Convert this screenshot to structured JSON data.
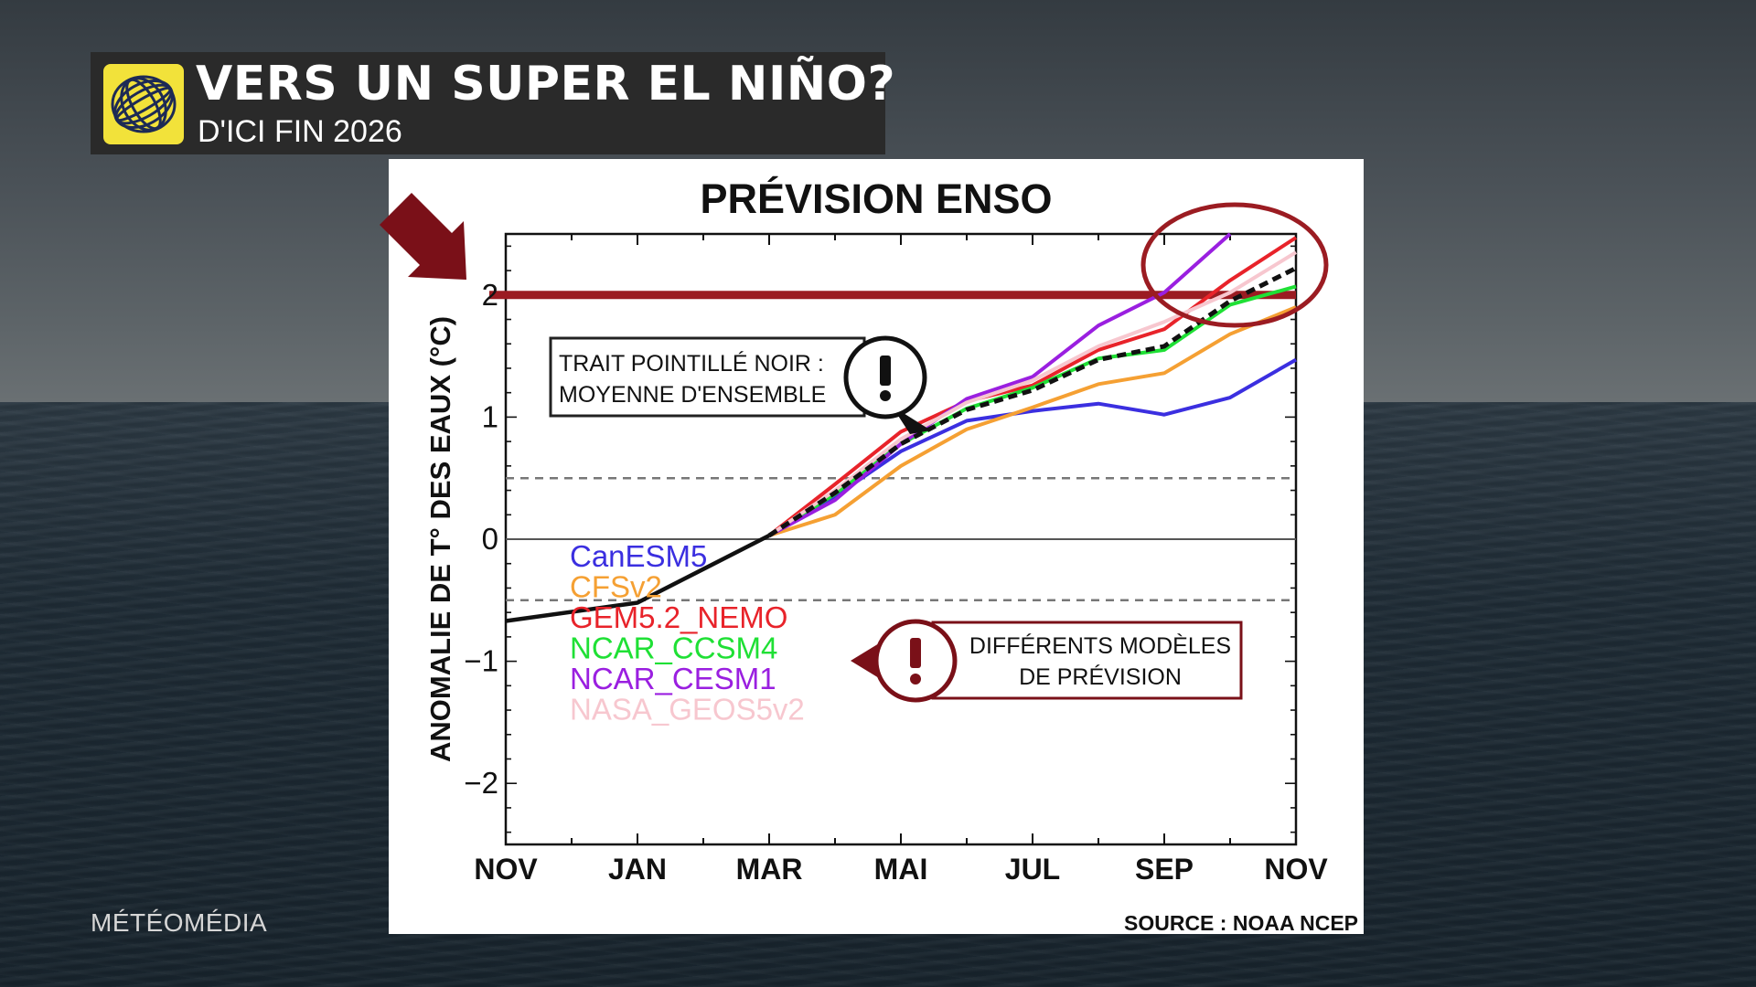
{
  "header": {
    "title": "VERS UN SUPER EL NIÑO?",
    "subtitle": "D'ICI FIN 2026"
  },
  "brand": "MÉTÉOMÉDIA",
  "source": "SOURCE : NOAA NCEP",
  "callouts": {
    "mean_line_line1": "TRAIT POINTILLÉ NOIR :",
    "mean_line_line2": "MOYENNE D'ENSEMBLE",
    "models_line1": "DIFFÉRENTS MODÈLES",
    "models_line2": "DE PRÉVISION"
  },
  "colors": {
    "threshold": "#9b1c22",
    "accent_red": "#7a1018",
    "logo_yellow": "#f2e23a"
  },
  "chart_data": {
    "type": "line",
    "title": "PRÉVISION ENSO",
    "ylabel": "ANOMALIE DE T° DES EAUX (°C)",
    "xlabel": "",
    "ylim": [
      -2.5,
      2.5
    ],
    "x_ticklabels": [
      "NOV",
      "JAN",
      "MAR",
      "MAI",
      "JUL",
      "SEP",
      "NOV"
    ],
    "y_ticks": [
      -2,
      -1,
      0,
      1,
      2
    ],
    "y_ticklabels": [
      "−2",
      "−1",
      "0",
      "1",
      "2"
    ],
    "reference_lines": {
      "threshold": 2.0,
      "dashed": [
        0.5,
        -0.5
      ],
      "solid": 0
    },
    "observed": {
      "months": [
        0,
        2,
        4
      ],
      "values": [
        -0.67,
        -0.52,
        0.03
      ]
    },
    "series": [
      {
        "name": "CanESM5",
        "color": "#3b2fe0",
        "months": [
          4,
          5,
          6,
          7,
          8,
          9,
          10,
          11,
          12
        ],
        "values": [
          0.03,
          0.35,
          0.72,
          0.97,
          1.05,
          1.11,
          1.02,
          1.16,
          1.47
        ]
      },
      {
        "name": "CFSv2",
        "color": "#f5a033",
        "months": [
          4,
          5,
          6,
          7,
          8,
          9,
          10,
          11,
          12
        ],
        "values": [
          0.03,
          0.2,
          0.6,
          0.9,
          1.08,
          1.27,
          1.36,
          1.68,
          1.9
        ]
      },
      {
        "name": "GEM5.2_NEMO",
        "color": "#e8232a",
        "months": [
          4,
          5,
          6,
          7,
          8,
          9,
          10,
          11,
          12
        ],
        "values": [
          0.03,
          0.45,
          0.88,
          1.13,
          1.26,
          1.55,
          1.72,
          2.12,
          2.47
        ]
      },
      {
        "name": "NCAR_CCSM4",
        "color": "#1fe035",
        "months": [
          4,
          5,
          6,
          7,
          8,
          9,
          10,
          11,
          12
        ],
        "values": [
          0.03,
          0.37,
          0.78,
          1.07,
          1.24,
          1.48,
          1.55,
          1.92,
          2.07
        ]
      },
      {
        "name": "NCAR_CESM1",
        "color": "#9a1fe0",
        "months": [
          4,
          5,
          6,
          7,
          8,
          9,
          10,
          11
        ],
        "values": [
          0.03,
          0.32,
          0.78,
          1.15,
          1.33,
          1.75,
          2.02,
          2.5
        ]
      },
      {
        "name": "NASA_GEOS5v2",
        "color": "#f7c7cf",
        "months": [
          4,
          5,
          6,
          7,
          8,
          9,
          10,
          11,
          12
        ],
        "values": [
          0.03,
          0.4,
          0.82,
          1.12,
          1.3,
          1.58,
          1.78,
          2.02,
          2.35
        ]
      }
    ],
    "ensemble_mean": {
      "name": "MOYENNE D'ENSEMBLE",
      "months": [
        4,
        5,
        6,
        7,
        8,
        9,
        10,
        11,
        12
      ],
      "values": [
        0.03,
        0.38,
        0.78,
        1.06,
        1.22,
        1.47,
        1.58,
        1.95,
        2.22
      ]
    },
    "grid": false,
    "legend": "left"
  }
}
